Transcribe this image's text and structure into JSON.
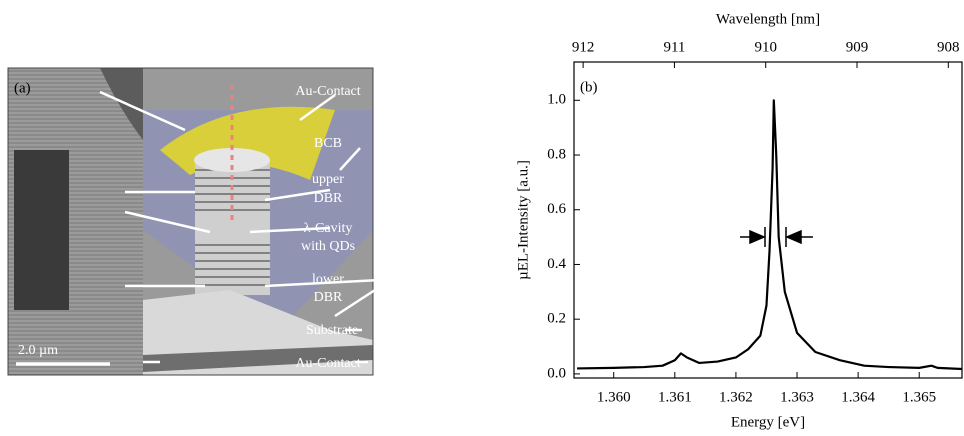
{
  "figure_a": {
    "panel_label": "(a)",
    "scale_bar": "2.0 µm",
    "labels": [
      "Au-Contact",
      "BCB",
      "upper",
      "DBR",
      "λ-Cavity",
      "with QDs",
      "lower",
      "DBR",
      "Substrate",
      "Au-Contact"
    ]
  },
  "chart_data": {
    "type": "line",
    "panel_label": "(b)",
    "xlabel": "Energy [eV]",
    "ylabel": "µEL-Intensity [a.u.]",
    "x2label": "Wavelength [nm]",
    "x": [
      1.3594,
      1.36,
      1.3605,
      1.3608,
      1.361,
      1.3611,
      1.3612,
      1.3614,
      1.3617,
      1.362,
      1.3622,
      1.3624,
      1.3625,
      1.36255,
      1.3626,
      1.36262,
      1.36266,
      1.3627,
      1.3628,
      1.363,
      1.3633,
      1.3637,
      1.364,
      1.3641,
      1.3645,
      1.365,
      1.3652,
      1.3653,
      1.3657
    ],
    "values": [
      0.02,
      0.022,
      0.025,
      0.03,
      0.05,
      0.075,
      0.06,
      0.04,
      0.045,
      0.06,
      0.09,
      0.14,
      0.25,
      0.45,
      0.75,
      1.0,
      0.8,
      0.5,
      0.3,
      0.15,
      0.08,
      0.05,
      0.035,
      0.03,
      0.025,
      0.022,
      0.03,
      0.022,
      0.018
    ],
    "color": "#000000",
    "xlim": [
      1.35935,
      1.3657
    ],
    "xticks": [
      {
        "value": 1.36,
        "label": "1.360"
      },
      1.361,
      1.362,
      1.363,
      1.364,
      1.365
    ],
    "ylim": [
      -0.015,
      1.14
    ],
    "yticks": [
      {
        "value": 0,
        "label": "0.0"
      },
      0.2,
      0.4,
      0.6,
      0.8,
      {
        "value": 1,
        "label": "1.0"
      }
    ],
    "x2lim": [
      912.1,
      907.85
    ],
    "x2ticks": [
      912,
      911,
      910,
      909,
      908
    ]
  }
}
